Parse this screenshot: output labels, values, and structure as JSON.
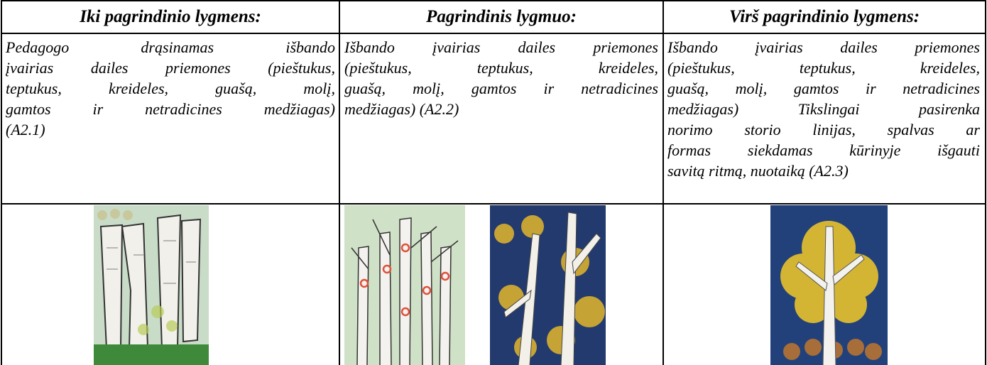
{
  "table": {
    "header": [
      "Iki pagrindinio lygmens:",
      "Pagrindinis lygmuo:",
      "Virš pagrindinio lygmens:"
    ],
    "body": [
      [
        "Pedagogo drąsinamas išbando",
        "įvairias dailes priemones (pieštukus,",
        "teptukus, kreideles, guašą, molį,",
        "gamtos ir netradicines medžiagas)",
        "(A2.1)"
      ],
      [
        "Išbando įvairias dailes priemones",
        "(pieštukus, teptukus, kreideles,",
        "guašą, molį, gamtos ir netradicines",
        "medžiagas) (A2.2)"
      ],
      [
        "Išbando įvairias dailes priemones",
        "(pieštukus, teptukus, kreideles,",
        "guašą, molį, gamtos ir netradicines",
        "medžiagas) Tikslingai pasirenka",
        "norimo storio linijas, spalvas ar",
        "formas siekdamas kūrinyje išgauti",
        "savitą ritmą, nuotaiką (A2.3)"
      ]
    ]
  }
}
